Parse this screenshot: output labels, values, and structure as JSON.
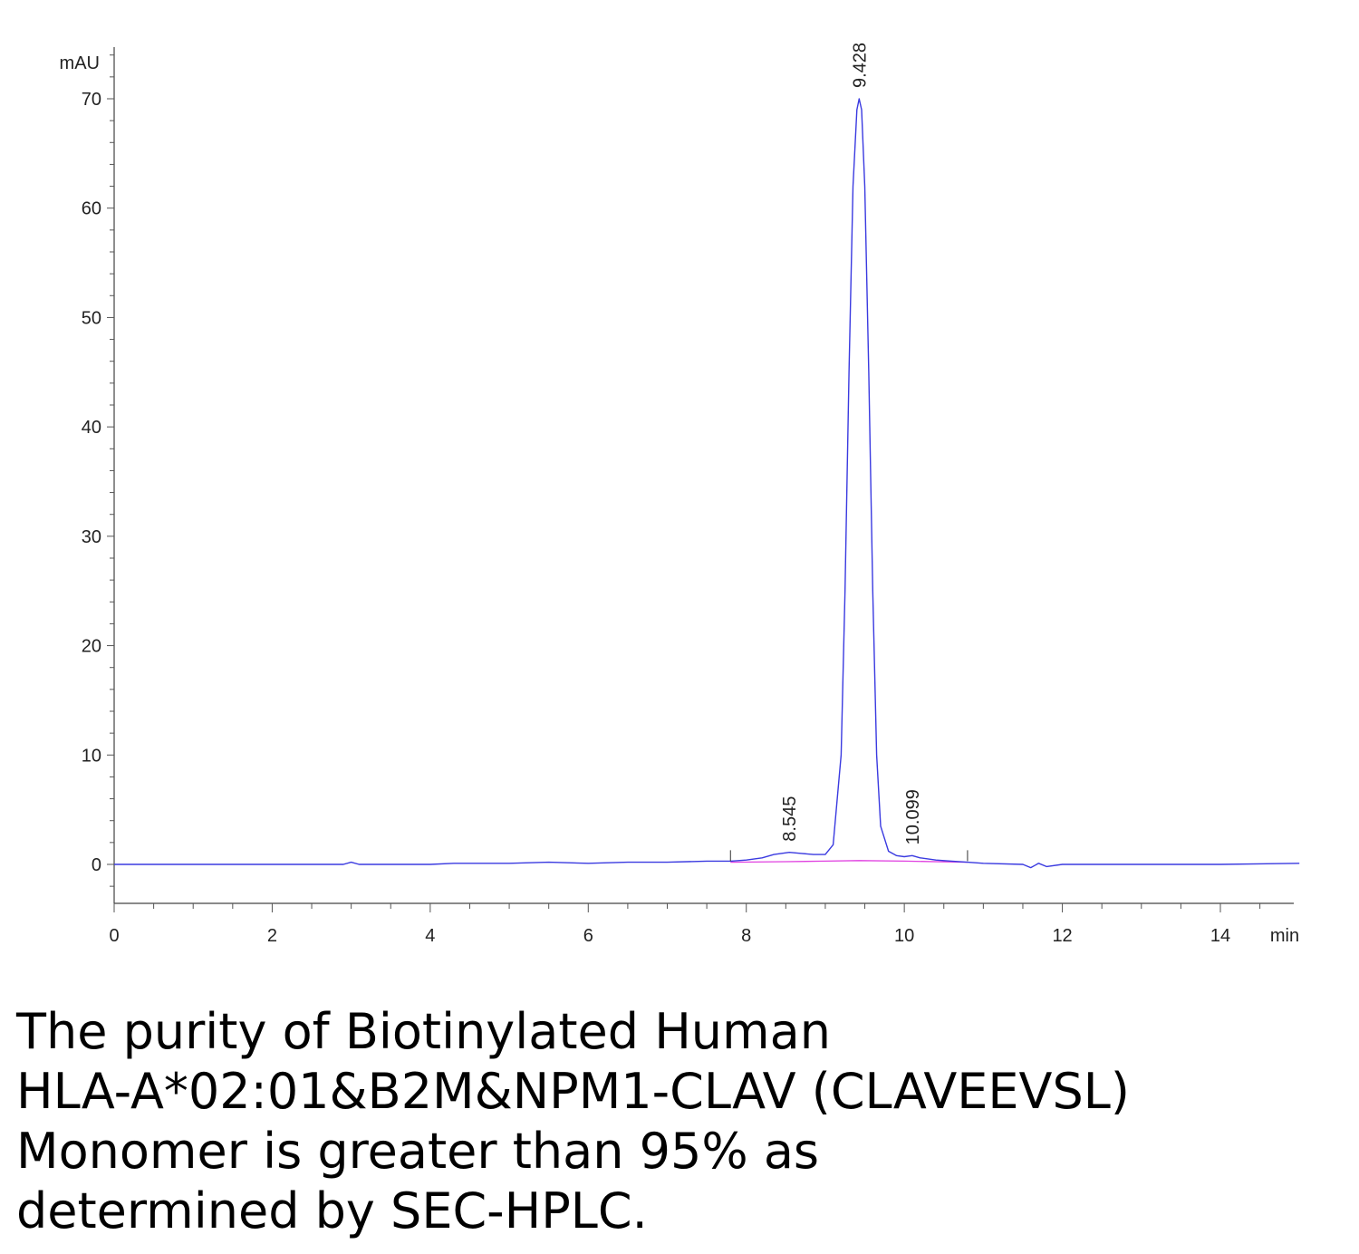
{
  "chart_data": {
    "type": "line",
    "title": "",
    "xlabel": "min",
    "ylabel": "mAU",
    "xlim": [
      0,
      15
    ],
    "ylim": [
      -7,
      75
    ],
    "x_ticks": [
      0,
      2,
      4,
      6,
      8,
      10,
      12,
      14
    ],
    "y_ticks": [
      0,
      10,
      20,
      30,
      40,
      50,
      60,
      70
    ],
    "grid": false,
    "series": [
      {
        "color": "#3a3ae0",
        "x": [
          0,
          2,
          2.9,
          3.0,
          3.1,
          4.0,
          4.3,
          5.0,
          5.5,
          6.0,
          6.5,
          7.0,
          7.5,
          7.8,
          8.0,
          8.2,
          8.35,
          8.545,
          8.7,
          8.85,
          9.0,
          9.1,
          9.2,
          9.25,
          9.3,
          9.35,
          9.4,
          9.428,
          9.46,
          9.5,
          9.55,
          9.6,
          9.65,
          9.7,
          9.8,
          9.9,
          10.0,
          10.099,
          10.2,
          10.4,
          10.6,
          10.8,
          11.0,
          11.5,
          11.6,
          11.7,
          11.8,
          12.0,
          13.0,
          14.0,
          15.0
        ],
        "y": [
          0,
          0,
          0,
          0.2,
          0,
          0,
          0.1,
          0.1,
          0.2,
          0.1,
          0.2,
          0.2,
          0.3,
          0.3,
          0.4,
          0.6,
          0.9,
          1.1,
          1.0,
          0.9,
          0.9,
          1.8,
          10,
          25,
          45,
          62,
          69,
          70,
          69,
          62,
          45,
          25,
          10,
          3.5,
          1.2,
          0.8,
          0.7,
          0.8,
          0.6,
          0.4,
          0.3,
          0.2,
          0.1,
          0.0,
          -0.3,
          0.1,
          -0.2,
          0.0,
          0.0,
          0.0,
          0.1
        ]
      }
    ],
    "baseline": {
      "color": "#e040e0",
      "x": [
        7.8,
        8.5,
        9.0,
        9.428,
        10.0,
        10.8
      ],
      "y": [
        0.2,
        0.25,
        0.3,
        0.35,
        0.3,
        0.2
      ]
    },
    "peaks": [
      {
        "rt": 8.545,
        "height": 1.1,
        "label": "8.545"
      },
      {
        "rt": 9.428,
        "height": 70,
        "label": "9.428"
      },
      {
        "rt": 10.099,
        "height": 0.8,
        "label": "10.099"
      }
    ],
    "markers": [
      7.8,
      10.8
    ]
  },
  "caption": {
    "lines": [
      "The purity of Biotinylated Human",
      "HLA-A*02:01&B2M&NPM1-CLAV (CLAVEEVSL)",
      "Monomer is greater than 95% as",
      "determined by SEC-HPLC."
    ]
  }
}
